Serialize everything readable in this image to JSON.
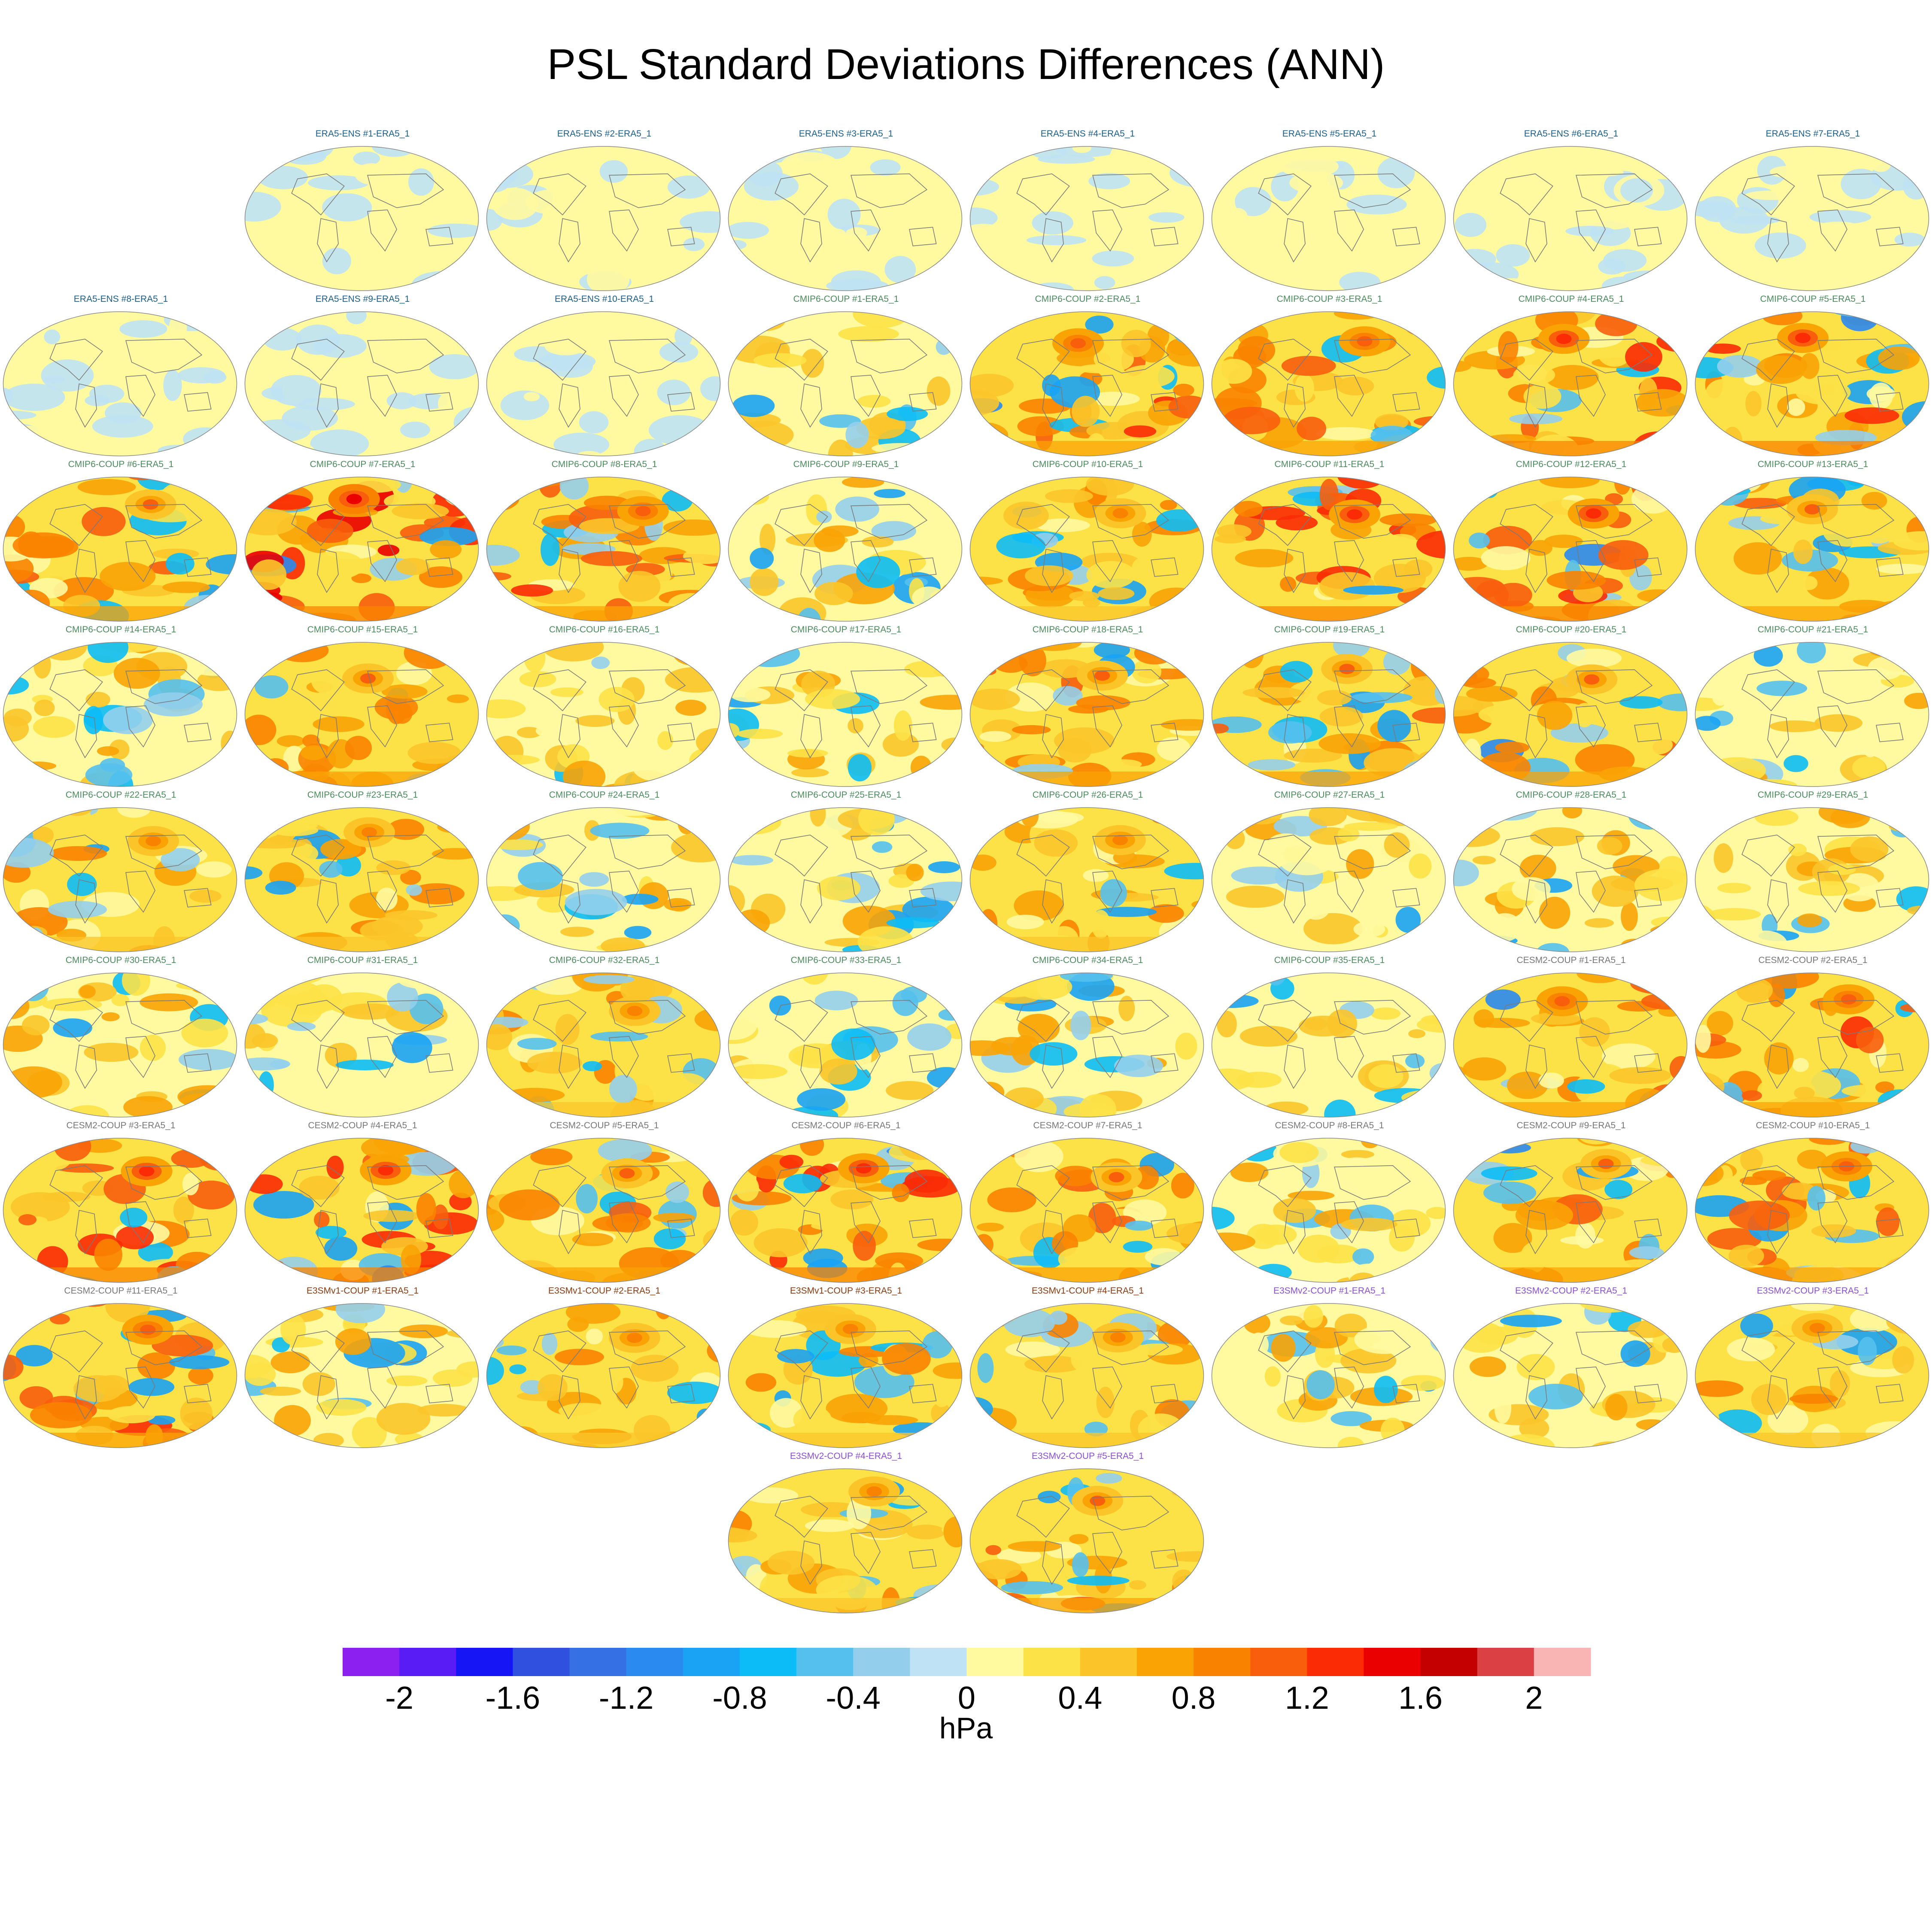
{
  "chart_data": {
    "type": "heatmap",
    "title": "PSL Standard Deviations Differences (ANN)",
    "units": "hPa",
    "colorbar": {
      "tick_labels": [
        "-2",
        "-1.6",
        "-1.2",
        "-0.8",
        "-0.4",
        "0",
        "0.4",
        "0.8",
        "1.2",
        "1.6",
        "2"
      ],
      "colors": [
        "#8b20f0",
        "#5a1cf4",
        "#1515f5",
        "#3050e0",
        "#3570e5",
        "#2a8aef",
        "#1aa3f4",
        "#0cbcf6",
        "#55c0ee",
        "#93cfec",
        "#bfe2f4",
        "#fffaa0",
        "#fde247",
        "#fbc52a",
        "#f9a305",
        "#f98300",
        "#f85e0c",
        "#fb2b06",
        "#ea0000",
        "#c40000",
        "#db4044",
        "#f9b4b4"
      ]
    },
    "group_colors": {
      "ERA5-ENS": "#1b5e8a",
      "CMIP6-COUP": "#4a8c5c",
      "CESM2-COUP": "#777777",
      "E3SMv1-COUP": "#8b3a0e",
      "E3SMv2-COUP": "#8a4fd6"
    },
    "panels": [
      {
        "label": "ERA5-ENS    #1-ERA5_1",
        "group": "ERA5-ENS",
        "anomaly": 0.0
      },
      {
        "label": "ERA5-ENS    #2-ERA5_1",
        "group": "ERA5-ENS",
        "anomaly": 0.0
      },
      {
        "label": "ERA5-ENS    #3-ERA5_1",
        "group": "ERA5-ENS",
        "anomaly": 0.0
      },
      {
        "label": "ERA5-ENS    #4-ERA5_1",
        "group": "ERA5-ENS",
        "anomaly": 0.0
      },
      {
        "label": "ERA5-ENS    #5-ERA5_1",
        "group": "ERA5-ENS",
        "anomaly": 0.0
      },
      {
        "label": "ERA5-ENS    #6-ERA5_1",
        "group": "ERA5-ENS",
        "anomaly": 0.0
      },
      {
        "label": "ERA5-ENS    #7-ERA5_1",
        "group": "ERA5-ENS",
        "anomaly": 0.0
      },
      {
        "label": "ERA5-ENS    #8-ERA5_1",
        "group": "ERA5-ENS",
        "anomaly": 0.0
      },
      {
        "label": "ERA5-ENS    #9-ERA5_1",
        "group": "ERA5-ENS",
        "anomaly": 0.0
      },
      {
        "label": "ERA5-ENS    #10-ERA5_1",
        "group": "ERA5-ENS",
        "anomaly": 0.0
      },
      {
        "label": "CMIP6-COUP  #1-ERA5_1",
        "group": "CMIP6-COUP",
        "anomaly": 0.3
      },
      {
        "label": "CMIP6-COUP  #2-ERA5_1",
        "group": "CMIP6-COUP",
        "anomaly": 0.7
      },
      {
        "label": "CMIP6-COUP  #3-ERA5_1",
        "group": "CMIP6-COUP",
        "anomaly": 0.7
      },
      {
        "label": "CMIP6-COUP  #4-ERA5_1",
        "group": "CMIP6-COUP",
        "anomaly": 0.8
      },
      {
        "label": "CMIP6-COUP  #5-ERA5_1",
        "group": "CMIP6-COUP",
        "anomaly": 0.8
      },
      {
        "label": "CMIP6-COUP  #6-ERA5_1",
        "group": "CMIP6-COUP",
        "anomaly": 0.6
      },
      {
        "label": "CMIP6-COUP  #7-ERA5_1",
        "group": "CMIP6-COUP",
        "anomaly": 0.9
      },
      {
        "label": "CMIP6-COUP  #8-ERA5_1",
        "group": "CMIP6-COUP",
        "anomaly": 0.7
      },
      {
        "label": "CMIP6-COUP  #9-ERA5_1",
        "group": "CMIP6-COUP",
        "anomaly": 0.4
      },
      {
        "label": "CMIP6-COUP  #10-ERA5_1",
        "group": "CMIP6-COUP",
        "anomaly": 0.5
      },
      {
        "label": "CMIP6-COUP  #11-ERA5_1",
        "group": "CMIP6-COUP",
        "anomaly": 0.8
      },
      {
        "label": "CMIP6-COUP  #12-ERA5_1",
        "group": "CMIP6-COUP",
        "anomaly": 0.8
      },
      {
        "label": "CMIP6-COUP  #13-ERA5_1",
        "group": "CMIP6-COUP",
        "anomaly": 0.6
      },
      {
        "label": "CMIP6-COUP  #14-ERA5_1",
        "group": "CMIP6-COUP",
        "anomaly": 0.4
      },
      {
        "label": "CMIP6-COUP  #15-ERA5_1",
        "group": "CMIP6-COUP",
        "anomaly": 0.6
      },
      {
        "label": "CMIP6-COUP  #16-ERA5_1",
        "group": "CMIP6-COUP",
        "anomaly": 0.4
      },
      {
        "label": "CMIP6-COUP  #17-ERA5_1",
        "group": "CMIP6-COUP",
        "anomaly": 0.4
      },
      {
        "label": "CMIP6-COUP  #18-ERA5_1",
        "group": "CMIP6-COUP",
        "anomaly": 0.6
      },
      {
        "label": "CMIP6-COUP  #19-ERA5_1",
        "group": "CMIP6-COUP",
        "anomaly": 0.6
      },
      {
        "label": "CMIP6-COUP  #20-ERA5_1",
        "group": "CMIP6-COUP",
        "anomaly": 0.6
      },
      {
        "label": "CMIP6-COUP  #21-ERA5_1",
        "group": "CMIP6-COUP",
        "anomaly": 0.4
      },
      {
        "label": "CMIP6-COUP  #22-ERA5_1",
        "group": "CMIP6-COUP",
        "anomaly": 0.5
      },
      {
        "label": "CMIP6-COUP  #23-ERA5_1",
        "group": "CMIP6-COUP",
        "anomaly": 0.5
      },
      {
        "label": "CMIP6-COUP  #24-ERA5_1",
        "group": "CMIP6-COUP",
        "anomaly": 0.4
      },
      {
        "label": "CMIP6-COUP  #25-ERA5_1",
        "group": "CMIP6-COUP",
        "anomaly": 0.4
      },
      {
        "label": "CMIP6-COUP  #26-ERA5_1",
        "group": "CMIP6-COUP",
        "anomaly": 0.5
      },
      {
        "label": "CMIP6-COUP  #27-ERA5_1",
        "group": "CMIP6-COUP",
        "anomaly": 0.4
      },
      {
        "label": "CMIP6-COUP  #28-ERA5_1",
        "group": "CMIP6-COUP",
        "anomaly": 0.4
      },
      {
        "label": "CMIP6-COUP  #29-ERA5_1",
        "group": "CMIP6-COUP",
        "anomaly": 0.4
      },
      {
        "label": "CMIP6-COUP  #30-ERA5_1",
        "group": "CMIP6-COUP",
        "anomaly": 0.4
      },
      {
        "label": "CMIP6-COUP  #31-ERA5_1",
        "group": "CMIP6-COUP",
        "anomaly": 0.3
      },
      {
        "label": "CMIP6-COUP  #32-ERA5_1",
        "group": "CMIP6-COUP",
        "anomaly": 0.5
      },
      {
        "label": "CMIP6-COUP  #33-ERA5_1",
        "group": "CMIP6-COUP",
        "anomaly": 0.3
      },
      {
        "label": "CMIP6-COUP  #34-ERA5_1",
        "group": "CMIP6-COUP",
        "anomaly": 0.4
      },
      {
        "label": "CMIP6-COUP  #35-ERA5_1",
        "group": "CMIP6-COUP",
        "anomaly": 0.3
      },
      {
        "label": "CESM2-COUP  #1-ERA5_1",
        "group": "CESM2-COUP",
        "anomaly": 0.7
      },
      {
        "label": "CESM2-COUP  #2-ERA5_1",
        "group": "CESM2-COUP",
        "anomaly": 0.7
      },
      {
        "label": "CESM2-COUP  #3-ERA5_1",
        "group": "CESM2-COUP",
        "anomaly": 0.8
      },
      {
        "label": "CESM2-COUP  #4-ERA5_1",
        "group": "CESM2-COUP",
        "anomaly": 0.8
      },
      {
        "label": "CESM2-COUP  #5-ERA5_1",
        "group": "CESM2-COUP",
        "anomaly": 0.6
      },
      {
        "label": "CESM2-COUP  #6-ERA5_1",
        "group": "CESM2-COUP",
        "anomaly": 0.8
      },
      {
        "label": "CESM2-COUP  #7-ERA5_1",
        "group": "CESM2-COUP",
        "anomaly": 0.6
      },
      {
        "label": "CESM2-COUP  #8-ERA5_1",
        "group": "CESM2-COUP",
        "anomaly": 0.4
      },
      {
        "label": "CESM2-COUP  #9-ERA5_1",
        "group": "CESM2-COUP",
        "anomaly": 0.6
      },
      {
        "label": "CESM2-COUP  #10-ERA5_1",
        "group": "CESM2-COUP",
        "anomaly": 0.7
      },
      {
        "label": "CESM2-COUP  #11-ERA5_1",
        "group": "CESM2-COUP",
        "anomaly": 0.7
      },
      {
        "label": "E3SMv1-COUP #1-ERA5_1",
        "group": "E3SMv1-COUP",
        "anomaly": 0.4
      },
      {
        "label": "E3SMv1-COUP #2-ERA5_1",
        "group": "E3SMv1-COUP",
        "anomaly": 0.5
      },
      {
        "label": "E3SMv1-COUP #3-ERA5_1",
        "group": "E3SMv1-COUP",
        "anomaly": 0.5
      },
      {
        "label": "E3SMv1-COUP #4-ERA5_1",
        "group": "E3SMv1-COUP",
        "anomaly": 0.5
      },
      {
        "label": "E3SMv2-COUP #1-ERA5_1",
        "group": "E3SMv2-COUP",
        "anomaly": 0.4
      },
      {
        "label": "E3SMv2-COUP #2-ERA5_1",
        "group": "E3SMv2-COUP",
        "anomaly": 0.4
      },
      {
        "label": "E3SMv2-COUP #3-ERA5_1",
        "group": "E3SMv2-COUP",
        "anomaly": 0.5
      },
      {
        "label": "E3SMv2-COUP #4-ERA5_1",
        "group": "E3SMv2-COUP",
        "anomaly": 0.5
      },
      {
        "label": "E3SMv2-COUP #5-ERA5_1",
        "group": "E3SMv2-COUP",
        "anomaly": 0.6
      }
    ]
  }
}
